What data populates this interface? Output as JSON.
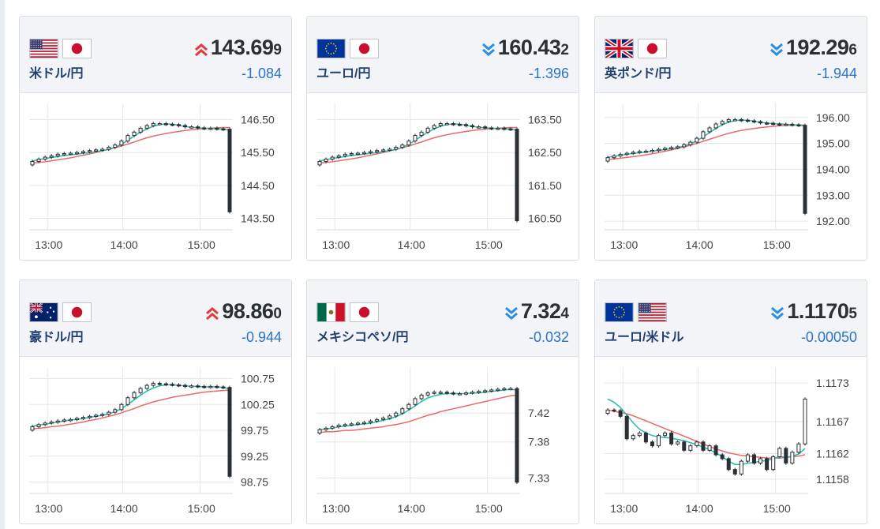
{
  "cards": [
    {
      "pair": "米ドル/円",
      "flags": [
        "us-flag",
        "jp-flag"
      ],
      "direction": "up",
      "price_main": "143.69",
      "price_pip": "9",
      "change": "-1.084",
      "chart_data": {
        "type": "line",
        "x_ticks": [
          "13:00",
          "14:00",
          "15:00"
        ],
        "y_ticks": [
          "146.50",
          "145.50",
          "144.50",
          "143.50"
        ],
        "ylim": [
          143.3,
          146.8
        ],
        "close": [
          145.23,
          145.3,
          145.36,
          145.4,
          145.45,
          145.47,
          145.48,
          145.5,
          145.53,
          145.56,
          145.58,
          145.6,
          145.66,
          145.73,
          145.85,
          146.02,
          146.12,
          146.24,
          146.32,
          146.38,
          146.38,
          146.36,
          146.35,
          146.32,
          146.28,
          146.28,
          146.25,
          146.23,
          146.24,
          146.22,
          146.21,
          143.7
        ],
        "ema_fast": [
          145.25,
          145.28,
          145.32,
          145.35,
          145.38,
          145.41,
          145.43,
          145.45,
          145.48,
          145.5,
          145.53,
          145.56,
          145.6,
          145.66,
          145.75,
          145.87,
          146.0,
          146.12,
          146.22,
          146.3,
          146.35,
          146.37,
          146.36,
          146.33,
          146.29,
          146.27,
          146.25,
          146.24,
          146.23,
          146.22,
          146.21,
          146.18
        ],
        "ema_slow": [
          145.18,
          145.2,
          145.22,
          145.25,
          145.28,
          145.31,
          145.34,
          145.38,
          145.42,
          145.46,
          145.5,
          145.55,
          145.6,
          145.65,
          145.7,
          145.76,
          145.82,
          145.89,
          145.95,
          146.0,
          146.04,
          146.08,
          146.11,
          146.14,
          146.17,
          146.19,
          146.21,
          146.23,
          146.24,
          146.25,
          146.26,
          146.26
        ]
      }
    },
    {
      "pair": "ユーロ/円",
      "flags": [
        "eu-flag",
        "jp-flag"
      ],
      "direction": "down",
      "price_main": "160.43",
      "price_pip": "2",
      "change": "-1.396",
      "chart_data": {
        "type": "line",
        "x_ticks": [
          "13:00",
          "14:00",
          "15:00"
        ],
        "y_ticks": [
          "163.50",
          "162.50",
          "161.50",
          "160.50"
        ],
        "ylim": [
          160.3,
          163.8
        ],
        "close": [
          162.23,
          162.3,
          162.36,
          162.4,
          162.45,
          162.47,
          162.48,
          162.5,
          162.53,
          162.56,
          162.58,
          162.6,
          162.66,
          162.73,
          162.85,
          163.02,
          163.12,
          163.24,
          163.32,
          163.38,
          163.38,
          163.36,
          163.35,
          163.32,
          163.28,
          163.28,
          163.25,
          163.23,
          163.24,
          163.22,
          163.21,
          160.43
        ],
        "ema_fast": [
          162.25,
          162.28,
          162.32,
          162.35,
          162.38,
          162.41,
          162.43,
          162.45,
          162.48,
          162.5,
          162.53,
          162.56,
          162.6,
          162.66,
          162.75,
          162.87,
          163.0,
          163.12,
          163.22,
          163.3,
          163.35,
          163.37,
          163.36,
          163.33,
          163.29,
          163.27,
          163.25,
          163.24,
          163.23,
          163.22,
          163.21,
          163.18
        ],
        "ema_slow": [
          162.18,
          162.2,
          162.22,
          162.25,
          162.28,
          162.31,
          162.34,
          162.38,
          162.42,
          162.46,
          162.5,
          162.55,
          162.6,
          162.65,
          162.7,
          162.76,
          162.82,
          162.89,
          162.95,
          163.0,
          163.04,
          163.08,
          163.11,
          163.14,
          163.17,
          163.19,
          163.21,
          163.23,
          163.24,
          163.25,
          163.26,
          163.26
        ]
      }
    },
    {
      "pair": "英ポンド/円",
      "flags": [
        "uk-flag",
        "jp-flag"
      ],
      "direction": "down",
      "price_main": "192.29",
      "price_pip": "6",
      "change": "-1.944",
      "chart_data": {
        "type": "line",
        "x_ticks": [
          "13:00",
          "14:00",
          "15:00"
        ],
        "y_ticks": [
          "196.00",
          "195.00",
          "194.00",
          "193.00",
          "192.00"
        ],
        "ylim": [
          191.85,
          196.3
        ],
        "close": [
          194.45,
          194.52,
          194.58,
          194.62,
          194.66,
          194.69,
          194.7,
          194.73,
          194.77,
          194.81,
          194.84,
          194.87,
          194.95,
          195.05,
          195.2,
          195.45,
          195.6,
          195.75,
          195.85,
          195.92,
          195.92,
          195.9,
          195.87,
          195.84,
          195.79,
          195.78,
          195.75,
          195.73,
          195.74,
          195.72,
          195.7,
          192.3
        ],
        "ema_fast": [
          194.47,
          194.5,
          194.54,
          194.58,
          194.61,
          194.64,
          194.67,
          194.7,
          194.73,
          194.76,
          194.8,
          194.84,
          194.9,
          194.98,
          195.1,
          195.25,
          195.42,
          195.58,
          195.72,
          195.82,
          195.88,
          195.9,
          195.89,
          195.86,
          195.81,
          195.79,
          195.76,
          195.75,
          195.74,
          195.72,
          195.71,
          195.67
        ],
        "ema_slow": [
          194.38,
          194.4,
          194.43,
          194.46,
          194.49,
          194.52,
          194.56,
          194.6,
          194.65,
          194.7,
          194.75,
          194.81,
          194.87,
          194.93,
          195.0,
          195.08,
          195.16,
          195.24,
          195.32,
          195.39,
          195.45,
          195.5,
          195.54,
          195.58,
          195.61,
          195.64,
          195.66,
          195.68,
          195.69,
          195.7,
          195.71,
          195.71
        ]
      }
    },
    {
      "pair": "豪ドル/円",
      "flags": [
        "au-flag",
        "jp-flag"
      ],
      "direction": "up",
      "price_main": "98.86",
      "price_pip": "0",
      "change": "-0.944",
      "chart_data": {
        "type": "line",
        "x_ticks": [
          "13:00",
          "14:00",
          "15:00"
        ],
        "y_ticks": [
          "100.75",
          "100.25",
          "99.75",
          "99.25",
          "98.75"
        ],
        "ylim": [
          98.62,
          100.85
        ],
        "close": [
          99.82,
          99.86,
          99.89,
          99.91,
          99.93,
          99.95,
          99.96,
          99.98,
          100.0,
          100.02,
          100.04,
          100.06,
          100.1,
          100.15,
          100.25,
          100.38,
          100.48,
          100.56,
          100.62,
          100.66,
          100.65,
          100.64,
          100.63,
          100.62,
          100.6,
          100.61,
          100.6,
          100.59,
          100.6,
          100.59,
          100.58,
          98.86
        ],
        "ema_fast": [
          99.83,
          99.85,
          99.87,
          99.89,
          99.91,
          99.93,
          99.95,
          99.96,
          99.98,
          100.0,
          100.02,
          100.04,
          100.07,
          100.11,
          100.17,
          100.25,
          100.34,
          100.43,
          100.51,
          100.57,
          100.61,
          100.63,
          100.63,
          100.62,
          100.61,
          100.6,
          100.6,
          100.59,
          100.59,
          100.59,
          100.58,
          100.55
        ],
        "ema_slow": [
          99.78,
          99.79,
          99.8,
          99.82,
          99.83,
          99.85,
          99.87,
          99.89,
          99.91,
          99.94,
          99.96,
          99.99,
          100.02,
          100.05,
          100.09,
          100.13,
          100.17,
          100.22,
          100.26,
          100.3,
          100.33,
          100.36,
          100.39,
          100.41,
          100.43,
          100.45,
          100.47,
          100.49,
          100.5,
          100.51,
          100.52,
          100.53
        ]
      }
    },
    {
      "pair": "メキシコペソ/円",
      "flags": [
        "mx-flag",
        "jp-flag"
      ],
      "direction": "down",
      "price_main": "7.32",
      "price_pip": "4",
      "change": "-0.032",
      "chart_data": {
        "type": "line",
        "x_ticks": [
          "13:00",
          "14:00",
          "15:00"
        ],
        "y_ticks": [
          "7.42",
          "7.38",
          "7.33"
        ],
        "ylim": [
          7.315,
          7.475
        ],
        "close": [
          7.397,
          7.399,
          7.401,
          7.403,
          7.404,
          7.405,
          7.406,
          7.407,
          7.409,
          7.411,
          7.413,
          7.416,
          7.42,
          7.426,
          7.432,
          7.44,
          7.445,
          7.448,
          7.449,
          7.449,
          7.448,
          7.447,
          7.447,
          7.448,
          7.449,
          7.45,
          7.451,
          7.452,
          7.453,
          7.454,
          7.454,
          7.324
        ],
        "ema_fast": [
          7.397,
          7.398,
          7.399,
          7.401,
          7.402,
          7.403,
          7.404,
          7.405,
          7.406,
          7.408,
          7.41,
          7.412,
          7.415,
          7.419,
          7.424,
          7.43,
          7.436,
          7.441,
          7.444,
          7.446,
          7.447,
          7.447,
          7.447,
          7.447,
          7.448,
          7.448,
          7.449,
          7.45,
          7.451,
          7.452,
          7.453,
          7.452
        ],
        "ema_slow": [
          7.393,
          7.394,
          7.394,
          7.395,
          7.396,
          7.396,
          7.397,
          7.398,
          7.399,
          7.4,
          7.401,
          7.403,
          7.404,
          7.406,
          7.408,
          7.411,
          7.414,
          7.417,
          7.419,
          7.422,
          7.424,
          7.426,
          7.428,
          7.43,
          7.432,
          7.434,
          7.436,
          7.438,
          7.44,
          7.442,
          7.444,
          7.445
        ]
      }
    },
    {
      "pair": "ユーロ/米ドル",
      "flags": [
        "eu-flag",
        "us-flag"
      ],
      "direction": "down",
      "price_main": "1.1170",
      "price_pip": "5",
      "change": "-0.00050",
      "chart_data": {
        "type": "line",
        "x_ticks": [
          "13:00",
          "14:00",
          "15:00"
        ],
        "y_ticks": [
          "1.1173",
          "1.1167",
          "1.1162",
          "1.1158"
        ],
        "ylim": [
          1.11565,
          1.11745
        ],
        "close": [
          1.11688,
          1.11687,
          1.11678,
          1.11643,
          1.11648,
          1.11652,
          1.11638,
          1.11632,
          1.11648,
          1.11652,
          1.11635,
          1.11638,
          1.11625,
          1.11632,
          1.11638,
          1.11625,
          1.11632,
          1.11618,
          1.11612,
          1.11595,
          1.11588,
          1.11608,
          1.11618,
          1.11605,
          1.11612,
          1.11595,
          1.11615,
          1.11628,
          1.11605,
          1.11622,
          1.11635,
          1.11705
        ],
        "ema_fast": [
          1.11705,
          1.117,
          1.11692,
          1.1168,
          1.11668,
          1.11658,
          1.11652,
          1.11648,
          1.11646,
          1.11645,
          1.11644,
          1.11642,
          1.1164,
          1.11637,
          1.11634,
          1.1163,
          1.11626,
          1.11621,
          1.11615,
          1.11608,
          1.11603,
          1.11603,
          1.11605,
          1.11606,
          1.11608,
          1.11609,
          1.11612,
          1.11615,
          1.11614,
          1.11616,
          1.11619,
          1.11628
        ],
        "ema_slow": [
          1.11688,
          1.11686,
          1.11684,
          1.11682,
          1.11679,
          1.11675,
          1.11671,
          1.11667,
          1.11663,
          1.11659,
          1.11655,
          1.11651,
          1.11647,
          1.11643,
          1.11639,
          1.11635,
          1.11631,
          1.11627,
          1.11624,
          1.11621,
          1.11619,
          1.11617,
          1.11616,
          1.11615,
          1.11614,
          1.11613,
          1.11613,
          1.11613,
          1.11614,
          1.11615,
          1.11616,
          1.11618
        ]
      }
    }
  ],
  "colors": {
    "up_arrow": "#e23b3b",
    "down_arrow": "#2a8fe0",
    "change_text": "#2a73c9",
    "ema_fast": "#1fbfa6",
    "ema_slow": "#e96a6a",
    "candle_body": "#2b2f36",
    "pair_label": "#1f3f70"
  }
}
